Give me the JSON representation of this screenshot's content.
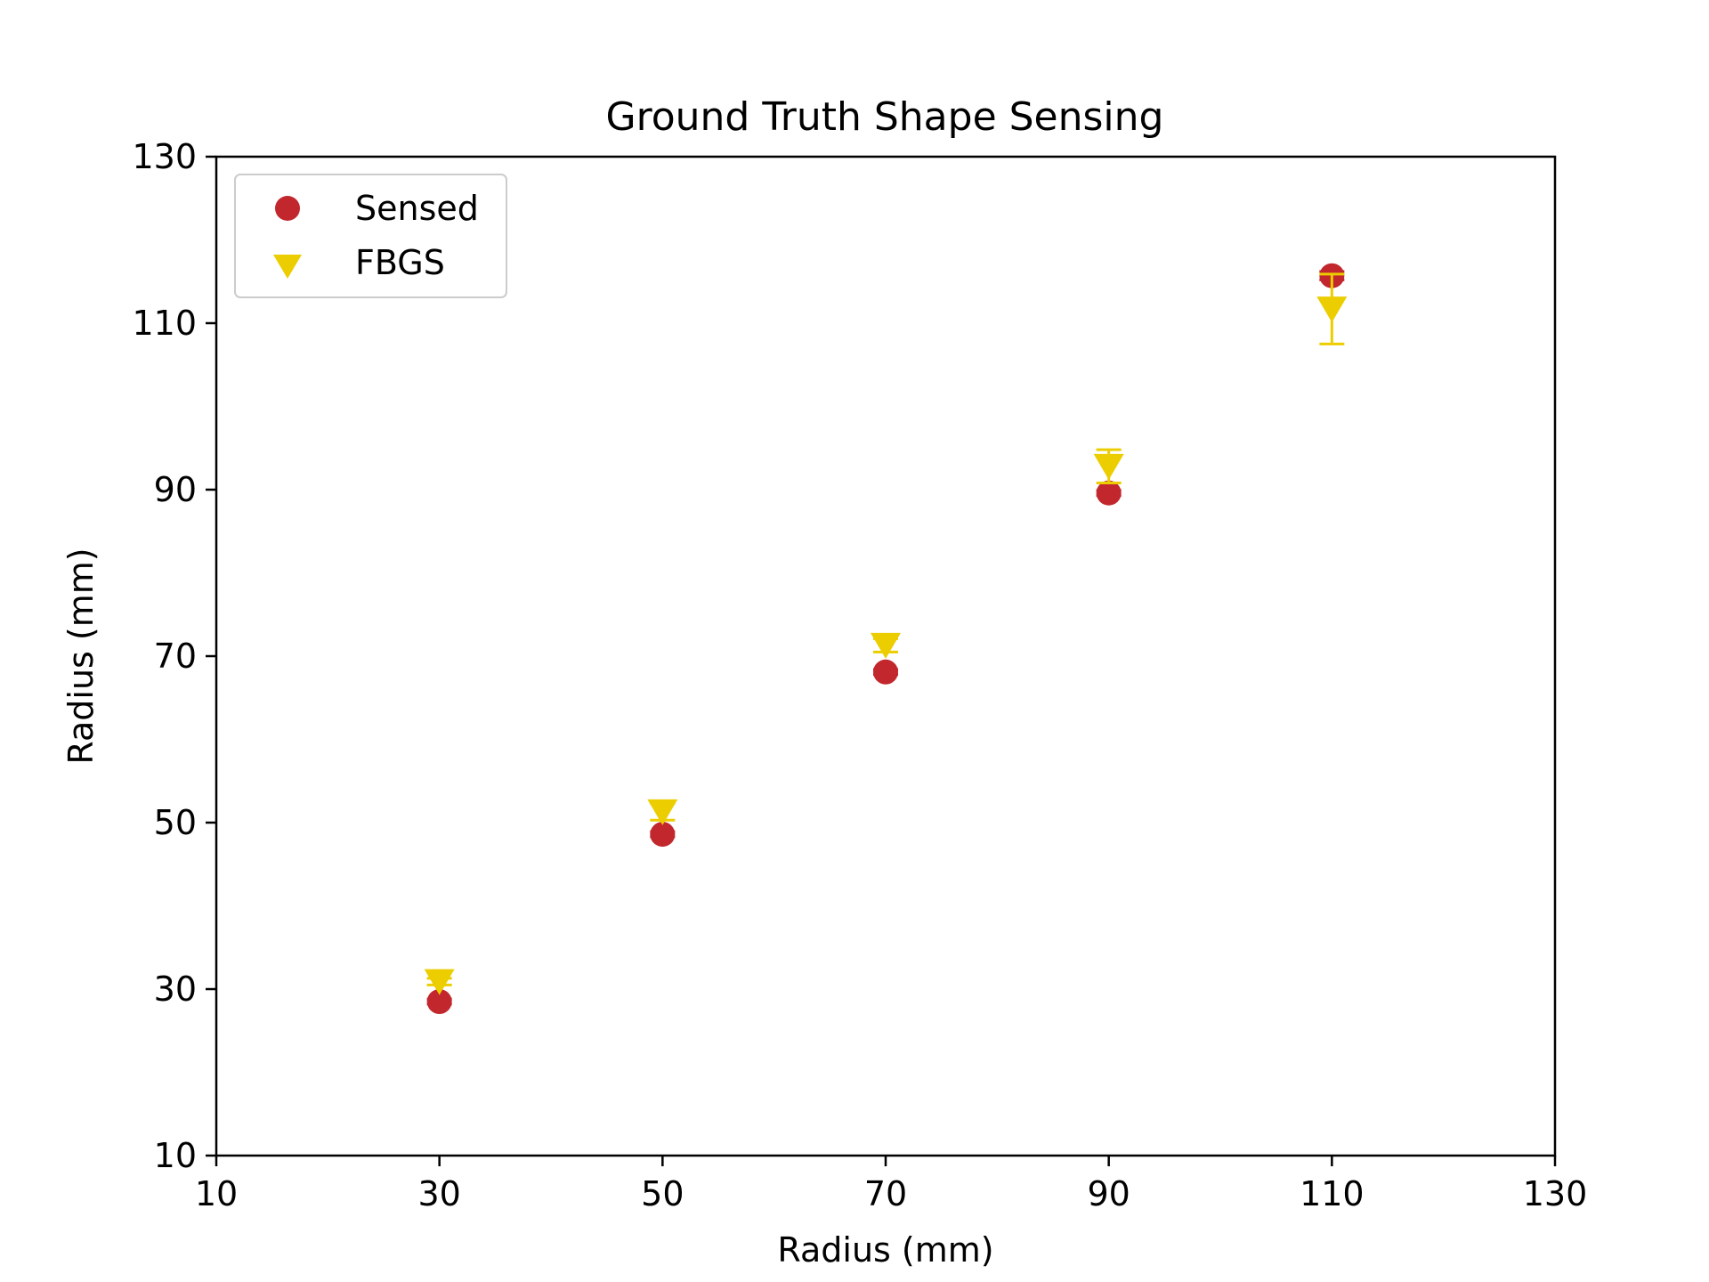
{
  "chart_data": {
    "type": "scatter",
    "title": "Ground Truth Shape Sensing",
    "xlabel": "Radius (mm)",
    "ylabel": "Radius (mm)",
    "xlim": [
      10,
      130
    ],
    "ylim": [
      10,
      130
    ],
    "xticks": [
      10,
      30,
      50,
      70,
      90,
      110,
      130
    ],
    "yticks": [
      10,
      30,
      50,
      70,
      90,
      110,
      130
    ],
    "grid": false,
    "legend_position": "top-left",
    "series": [
      {
        "name": "Sensed",
        "marker": "circle",
        "color": "#c1272d",
        "points": [
          {
            "x": 30,
            "y": 28.5,
            "err": 0.3
          },
          {
            "x": 50,
            "y": 48.6,
            "err": 0.3
          },
          {
            "x": 70,
            "y": 68.1,
            "err": 0.3
          },
          {
            "x": 90,
            "y": 89.6,
            "err": 0.3
          },
          {
            "x": 110,
            "y": 115.7,
            "err": 0.5
          }
        ]
      },
      {
        "name": "FBGS",
        "marker": "triangle-down",
        "color": "#eccd00",
        "points": [
          {
            "x": 30,
            "y": 30.9,
            "err": 0.4
          },
          {
            "x": 50,
            "y": 51.3,
            "err": 1.0
          },
          {
            "x": 70,
            "y": 71.3,
            "err": 0.8
          },
          {
            "x": 90,
            "y": 92.8,
            "err": 2.0
          },
          {
            "x": 110,
            "y": 111.7,
            "err": 4.2
          }
        ]
      }
    ]
  }
}
